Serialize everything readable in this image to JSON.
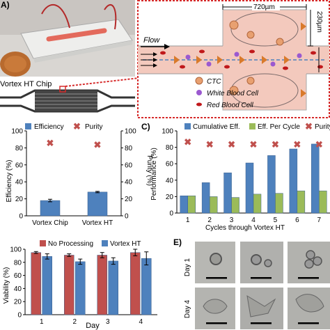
{
  "panels": {
    "a_label": "A)",
    "c_label": "C)",
    "e_label": "E)"
  },
  "photo": {
    "device_caption": "Vortex HT Chip"
  },
  "schematic": {
    "flow_label": "Flow",
    "width_label": "720µm",
    "height_label": "230µm",
    "legend": [
      {
        "label": "CTC",
        "color": "#e8a070"
      },
      {
        "label": "White Blood Cell",
        "color": "#9b59d0"
      },
      {
        "label": "Red Blood Cell",
        "color": "#c0181b"
      }
    ]
  },
  "micrographs": {
    "row_labels": [
      "Day 1",
      "Day 4"
    ]
  },
  "chart_data": [
    {
      "id": "B",
      "type": "bar",
      "categories": [
        "Vortex Chip",
        "Vortex HT"
      ],
      "series": [
        {
          "name": "Efficiency",
          "values": [
            18,
            28
          ],
          "color": "#4e81bd",
          "errors": [
            1.5,
            0.8
          ]
        },
        {
          "name": "Purity",
          "values": [
            86,
            84
          ],
          "color": "#c0504d",
          "marker": "x"
        }
      ],
      "ylabel": "Efficiency (%)",
      "ylabel2": "Purity (%)",
      "yticks": [
        0,
        20,
        40,
        60,
        80,
        100
      ],
      "ylim": [
        0,
        100
      ]
    },
    {
      "id": "C",
      "type": "bar",
      "categories": [
        "1",
        "2",
        "3",
        "4",
        "5",
        "6",
        "7"
      ],
      "series": [
        {
          "name": "Cumulative Eff.",
          "values": [
            21,
            37,
            49,
            61,
            70,
            78,
            84
          ],
          "color": "#4e81bd"
        },
        {
          "name": "Eff. Per Cycle",
          "values": [
            21,
            20,
            19,
            23,
            24,
            27,
            27
          ],
          "color": "#9bbb59"
        },
        {
          "name": "Purity",
          "values": [
            87,
            84,
            84,
            84,
            84,
            84,
            84
          ],
          "color": "#c0504d",
          "marker": "x"
        }
      ],
      "xlabel": "Cycles through Vortex HT",
      "ylabel": "Performance (%)",
      "yticks": [
        0,
        20,
        40,
        60,
        80,
        100
      ],
      "ylim": [
        0,
        100
      ]
    },
    {
      "id": "D",
      "type": "bar",
      "categories": [
        "1",
        "2",
        "3",
        "4"
      ],
      "series": [
        {
          "name": "No Processing",
          "values": [
            95,
            91,
            91,
            95
          ],
          "color": "#c0504d",
          "errors": [
            1.5,
            2,
            4,
            5
          ]
        },
        {
          "name": "Vortex HT",
          "values": [
            89,
            81,
            82,
            86
          ],
          "color": "#4e81bd",
          "errors": [
            4,
            4,
            5,
            10
          ]
        }
      ],
      "xlabel": "Day",
      "ylabel": "Viability (%)",
      "yticks": [
        0,
        20,
        40,
        60,
        80,
        100
      ],
      "ylim": [
        0,
        100
      ]
    }
  ]
}
